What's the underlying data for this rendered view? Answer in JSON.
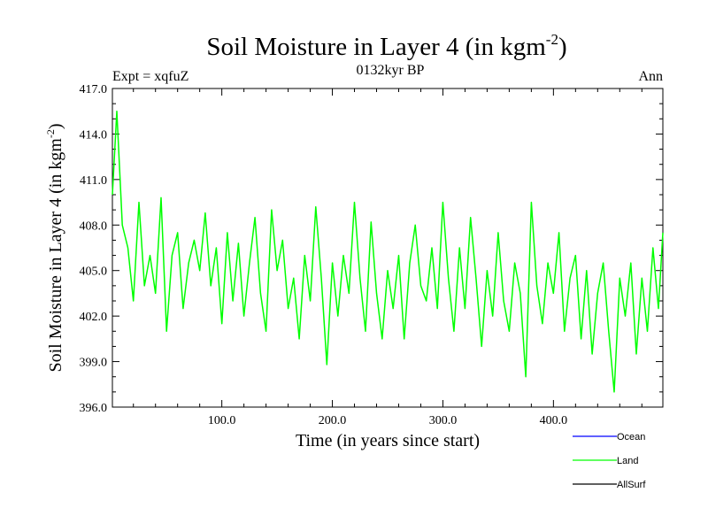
{
  "chart_data": {
    "type": "line",
    "title": "Soil Moisture in Layer 4 (in kgm",
    "title_sup": "-2",
    "title_close": ")",
    "subtitle": "0132kyr BP",
    "left_label": "Expt = xqfuZ",
    "right_label": "Ann",
    "xlabel": "Time (in years since start)",
    "ylabel": "Soil Moisture in Layer 4 (in kgm",
    "ylabel_sup": "-2",
    "ylabel_close": ")",
    "xlim": [
      1,
      499
    ],
    "ylim": [
      396.0,
      417.0
    ],
    "xticks": [
      100,
      200,
      300,
      400
    ],
    "xtick_labels": [
      "100.0",
      "200.0",
      "300.0",
      "400.0"
    ],
    "yticks": [
      396,
      399,
      402,
      405,
      408,
      411,
      414,
      417
    ],
    "ytick_labels": [
      "396.0",
      "399.0",
      "402.0",
      "405.0",
      "408.0",
      "411.0",
      "414.0",
      "417.0"
    ],
    "legend": [
      {
        "name": "Ocean",
        "color": "#0000ff"
      },
      {
        "name": "Land",
        "color": "#00ff00"
      },
      {
        "name": "AllSurf",
        "color": "#000000"
      }
    ],
    "series": [
      {
        "name": "Land",
        "color": "#00ff00",
        "x": [
          1,
          5,
          10,
          15,
          20,
          25,
          30,
          35,
          40,
          45,
          50,
          55,
          60,
          65,
          70,
          75,
          80,
          85,
          90,
          95,
          100,
          105,
          110,
          115,
          120,
          125,
          130,
          135,
          140,
          145,
          150,
          155,
          160,
          165,
          170,
          175,
          180,
          185,
          190,
          195,
          200,
          205,
          210,
          215,
          220,
          225,
          230,
          235,
          240,
          245,
          250,
          255,
          260,
          265,
          270,
          275,
          280,
          285,
          290,
          295,
          300,
          305,
          310,
          315,
          320,
          325,
          330,
          335,
          340,
          345,
          350,
          355,
          360,
          365,
          370,
          375,
          380,
          385,
          390,
          395,
          400,
          405,
          410,
          415,
          420,
          425,
          430,
          435,
          440,
          445,
          450,
          455,
          460,
          465,
          470,
          475,
          480,
          485,
          490,
          495,
          499
        ],
        "y": [
          410.0,
          415.5,
          408.0,
          406.5,
          403.0,
          409.5,
          404.0,
          406.0,
          403.5,
          409.8,
          401.0,
          406.0,
          407.5,
          402.5,
          405.5,
          407.0,
          405.0,
          408.8,
          404.0,
          406.5,
          401.5,
          407.5,
          403.0,
          406.8,
          402.0,
          405.5,
          408.5,
          403.5,
          401.0,
          409.0,
          405.0,
          407.0,
          402.5,
          404.5,
          400.5,
          406.0,
          403.0,
          409.2,
          404.5,
          398.8,
          405.5,
          402.0,
          406.0,
          403.5,
          409.5,
          404.5,
          401.0,
          408.2,
          403.5,
          400.5,
          405.0,
          402.5,
          406.0,
          400.5,
          405.5,
          408.0,
          404.0,
          403.0,
          406.5,
          402.5,
          409.5,
          404.5,
          401.0,
          406.5,
          402.5,
          408.5,
          404.5,
          400.0,
          405.0,
          402.0,
          407.5,
          403.0,
          401.0,
          405.5,
          403.5,
          398.0,
          409.5,
          404.0,
          401.5,
          405.5,
          403.5,
          407.5,
          401.0,
          404.5,
          406.0,
          400.5,
          405.0,
          399.5,
          403.5,
          405.5,
          401.0,
          397.0,
          404.5,
          402.0,
          405.5,
          399.5,
          404.5,
          401.0,
          406.5,
          402.5,
          407.5
        ]
      },
      {
        "name": "Ocean",
        "color": "#0000ff",
        "x": [],
        "y": []
      },
      {
        "name": "AllSurf",
        "color": "#000000",
        "x": [],
        "y": []
      }
    ]
  }
}
